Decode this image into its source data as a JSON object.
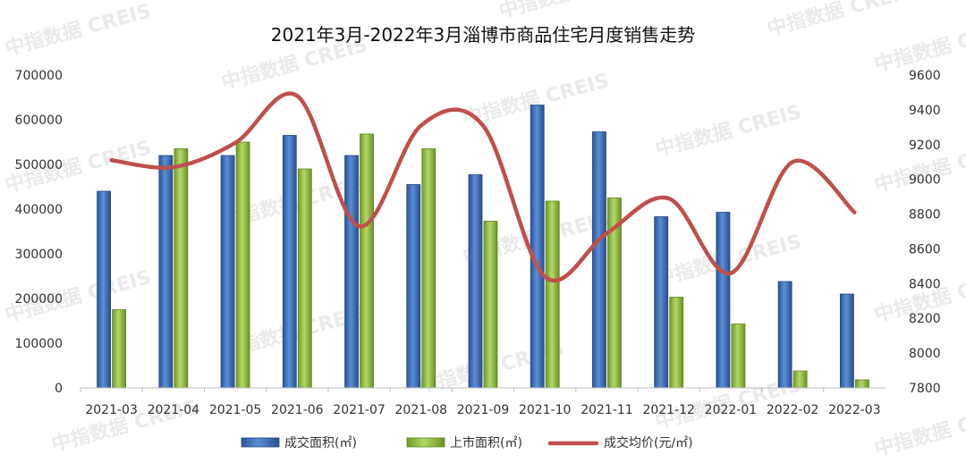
{
  "chart_data": {
    "type": "bar",
    "title": "2021年3月-2022年3月淄博市商品住宅月度销售走势",
    "categories": [
      "2021-03",
      "2021-04",
      "2021-05",
      "2021-06",
      "2021-07",
      "2021-08",
      "2021-09",
      "2021-10",
      "2021-11",
      "2021-12",
      "2022-01",
      "2022-02",
      "2022-03"
    ],
    "series": [
      {
        "name": "成交面积(㎡)",
        "type": "bar",
        "axis": "left",
        "color": "#3f6fb5",
        "values": [
          440000,
          520000,
          520000,
          565000,
          520000,
          455000,
          477000,
          633000,
          573000,
          383000,
          393000,
          238000,
          210000
        ]
      },
      {
        "name": "上市面积(㎡)",
        "type": "bar",
        "axis": "left",
        "color": "#8dbb3c",
        "values": [
          175000,
          535000,
          550000,
          490000,
          568000,
          535000,
          373000,
          418000,
          425000,
          203000,
          143000,
          38000,
          18000
        ]
      },
      {
        "name": "成交均价(元/㎡)",
        "type": "line",
        "axis": "right",
        "color": "#c0504d",
        "values": [
          9110,
          9070,
          9210,
          9480,
          8730,
          9310,
          9310,
          8440,
          8690,
          8890,
          8460,
          9100,
          8810
        ]
      }
    ],
    "y_left": {
      "min": 0,
      "max": 700000,
      "ticks": [
        0,
        100000,
        200000,
        300000,
        400000,
        500000,
        600000,
        700000
      ]
    },
    "y_right": {
      "min": 7800,
      "max": 9600,
      "ticks": [
        7800,
        8000,
        8200,
        8400,
        8600,
        8800,
        9000,
        9200,
        9400,
        9600
      ]
    },
    "grid": false,
    "legend_position": "bottom"
  },
  "watermark": "中指数据 CREIS",
  "colors": {
    "bar1": "#3f6fb5",
    "bar2": "#8dbb3c",
    "line": "#c0504d"
  }
}
